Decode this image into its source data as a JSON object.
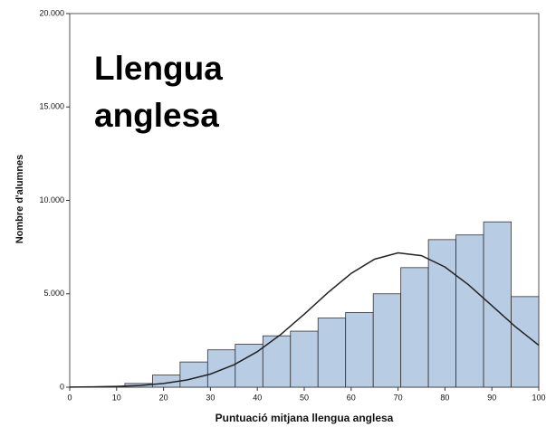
{
  "chart_data": {
    "type": "histogram",
    "title": "Llengua anglesa",
    "xlabel": "Puntuació mitjana llengua anglesa",
    "ylabel": "Nombre d'alumnes",
    "bins": [
      0,
      5.88,
      11.76,
      17.65,
      23.53,
      29.41,
      35.29,
      41.18,
      47.06,
      52.94,
      58.82,
      64.71,
      70.59,
      76.47,
      82.35,
      88.24,
      94.12,
      100
    ],
    "values": [
      0,
      30,
      200,
      650,
      1350,
      2000,
      2300,
      2750,
      3000,
      3700,
      4000,
      5000,
      6400,
      7900,
      8150,
      8850,
      4850
    ],
    "color": "#b8cce4",
    "curve": {
      "x": [
        0,
        5,
        10,
        15,
        20,
        25,
        30,
        35,
        40,
        45,
        50,
        55,
        60,
        65,
        70,
        75,
        80,
        85,
        90,
        95,
        100
      ],
      "y": [
        7,
        17,
        42,
        94,
        197,
        385,
        702,
        1196,
        1903,
        2824,
        3909,
        5050,
        6090,
        6850,
        7190,
        7042,
        6437,
        5487,
        4367,
        3241,
        2245
      ]
    },
    "xlim": [
      0,
      100
    ],
    "xticks": [
      0,
      10,
      20,
      30,
      40,
      50,
      60,
      70,
      80,
      90,
      100
    ],
    "ylim": [
      0,
      20000
    ],
    "yticks": [
      0,
      {
        "value": 5000,
        "label": "5.000"
      },
      {
        "value": 10000,
        "label": "10.000"
      },
      {
        "value": 15000,
        "label": "15.000"
      },
      {
        "value": 20000,
        "label": "20.000"
      }
    ]
  }
}
